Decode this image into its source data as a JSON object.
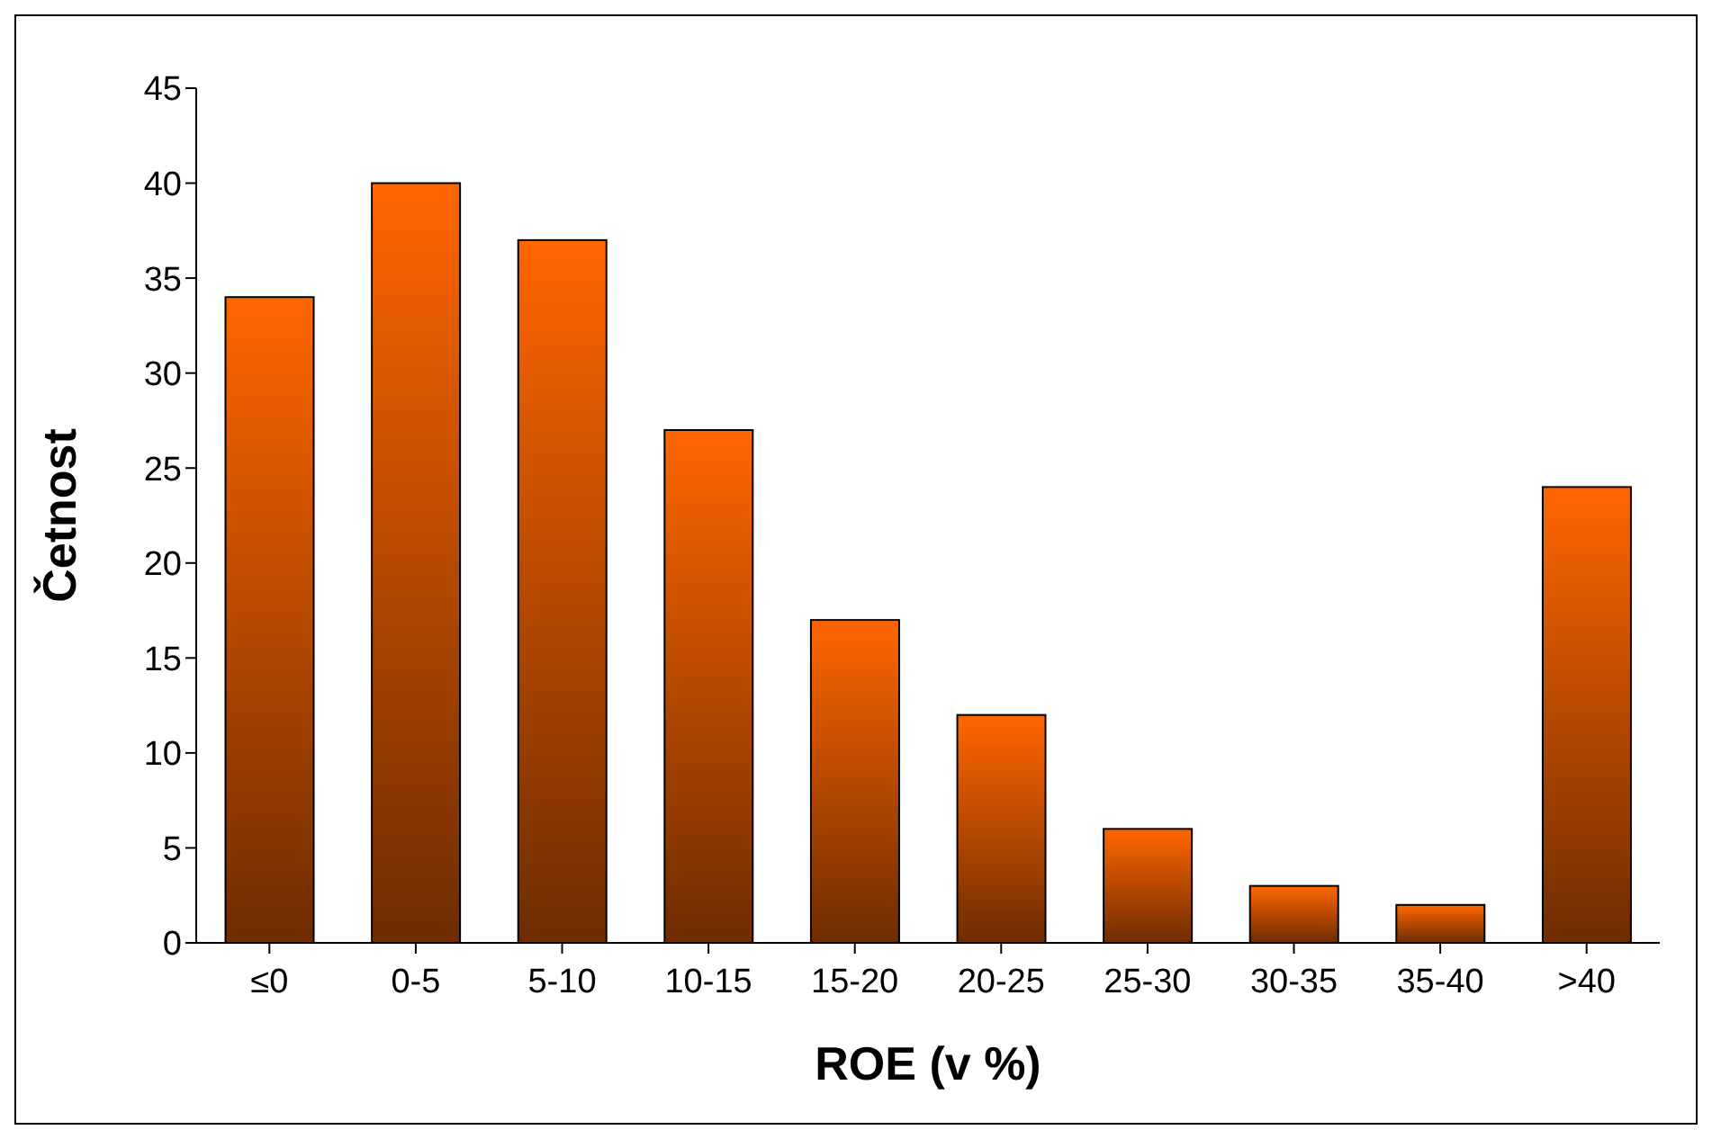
{
  "chart_data": {
    "type": "bar",
    "xlabel": "ROE (v %)",
    "ylabel": "Četnost",
    "categories": [
      "≤0",
      "0-5",
      "5-10",
      "10-15",
      "15-20",
      "20-25",
      "25-30",
      "30-35",
      "35-40",
      ">40"
    ],
    "values": [
      34,
      40,
      37,
      27,
      17,
      12,
      6,
      3,
      2,
      24
    ],
    "color": "#ff6600",
    "ylim": [
      0,
      45
    ],
    "yticks": [
      0,
      5,
      10,
      15,
      20,
      25,
      30,
      35,
      40,
      45
    ],
    "grid": false,
    "legend": false
  }
}
